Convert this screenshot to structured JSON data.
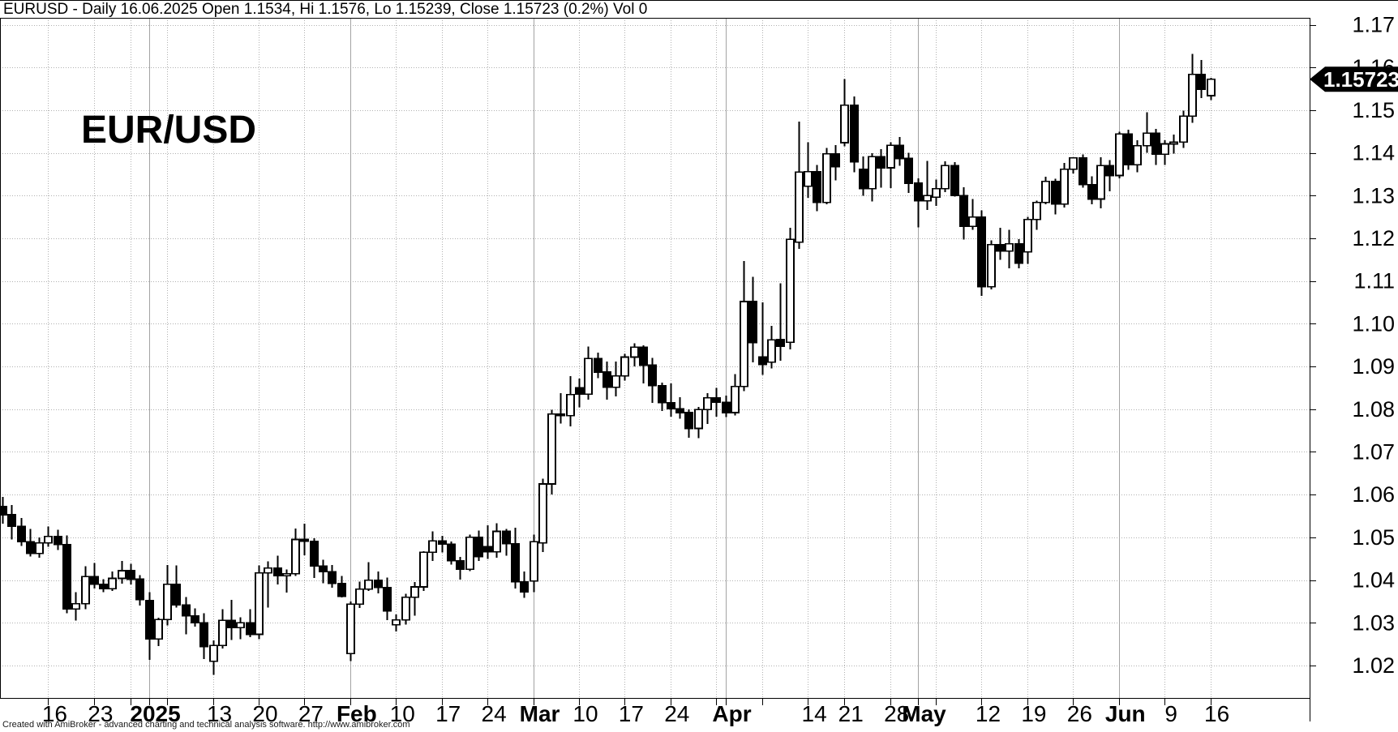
{
  "window": {
    "title": "EURUSD - Daily 16.06.2025 Open 1.1534, Hi 1.1576, Lo 1.15239, Close 1.15723 (0.2%) Vol 0"
  },
  "watermark": "EUR/USD",
  "price_axis": {
    "tick_labels": [
      "1.17",
      "1.16",
      "1.15",
      "1.14",
      "1.13",
      "1.12",
      "1.11",
      "1.10",
      "1.09",
      "1.08",
      "1.07",
      "1.06",
      "1.05",
      "1.04",
      "1.03",
      "1.02"
    ],
    "last_price_label": "1.15723"
  },
  "time_axis": {
    "labels": [
      {
        "index": 5,
        "text": "16",
        "bold": false
      },
      {
        "index": 10,
        "text": "23",
        "bold": false
      },
      {
        "index": 16,
        "text": "2025",
        "bold": true
      },
      {
        "index": 23,
        "text": "13",
        "bold": false
      },
      {
        "index": 28,
        "text": "20",
        "bold": false
      },
      {
        "index": 33,
        "text": "27",
        "bold": false
      },
      {
        "index": 38,
        "text": "Feb",
        "bold": true
      },
      {
        "index": 43,
        "text": "10",
        "bold": false
      },
      {
        "index": 48,
        "text": "17",
        "bold": false
      },
      {
        "index": 53,
        "text": "24",
        "bold": false
      },
      {
        "index": 58,
        "text": "Mar",
        "bold": true
      },
      {
        "index": 63,
        "text": "10",
        "bold": false
      },
      {
        "index": 68,
        "text": "17",
        "bold": false
      },
      {
        "index": 73,
        "text": "24",
        "bold": false
      },
      {
        "index": 79,
        "text": "Apr",
        "bold": true
      },
      {
        "index": 88,
        "text": "14",
        "bold": false
      },
      {
        "index": 92,
        "text": "21",
        "bold": false
      },
      {
        "index": 97,
        "text": "28",
        "bold": false
      },
      {
        "index": 100,
        "text": "May",
        "bold": true
      },
      {
        "index": 107,
        "text": "12",
        "bold": false
      },
      {
        "index": 112,
        "text": "19",
        "bold": false
      },
      {
        "index": 117,
        "text": "26",
        "bold": false
      },
      {
        "index": 122,
        "text": "Jun",
        "bold": true
      },
      {
        "index": 127,
        "text": "9",
        "bold": false
      },
      {
        "index": 132,
        "text": "16",
        "bold": false
      }
    ]
  },
  "footer": {
    "credit": "Created with AmiBroker - advanced charting and technical analysis software. http://www.amibroker.com"
  },
  "colors": {
    "background": "#ffffff",
    "candle_up_fill": "#ffffff",
    "candle_down_fill": "#000000",
    "candle_stroke": "#000000",
    "grid_dotted": "#b0b0b0",
    "grid_month_solid": "#a3a3a3",
    "axis": "#000000",
    "price_tag_bg": "#000000",
    "price_tag_text": "#ffffff"
  },
  "chart_data": {
    "type": "candlestick",
    "symbol": "EURUSD",
    "timeframe": "Daily",
    "title": "EURUSD - Daily 16.06.2025",
    "last_bar": {
      "date": "2025-06-16",
      "open": 1.1534,
      "high": 1.1576,
      "low": 1.15239,
      "close": 1.15723,
      "change_pct": "0.2%",
      "volume": 0
    },
    "ylim": [
      1.012,
      1.1716
    ],
    "y_ticks": [
      1.17,
      1.16,
      1.15,
      1.14,
      1.13,
      1.12,
      1.11,
      1.1,
      1.09,
      1.08,
      1.07,
      1.06,
      1.05,
      1.04,
      1.03,
      1.02
    ],
    "grid": true,
    "legend_position": "none",
    "blank_bars_right": 11,
    "monday_indices": [
      5,
      10,
      14,
      18,
      23,
      28,
      33,
      38,
      43,
      48,
      53,
      58,
      63,
      68,
      73,
      78,
      83,
      88,
      92,
      97,
      102,
      107,
      112,
      117,
      122,
      127,
      132
    ],
    "month_start_indices": [
      16,
      38,
      58,
      79,
      100,
      122
    ],
    "dates": [
      "2024-12-09",
      "2024-12-10",
      "2024-12-11",
      "2024-12-12",
      "2024-12-13",
      "2024-12-16",
      "2024-12-17",
      "2024-12-18",
      "2024-12-19",
      "2024-12-20",
      "2024-12-23",
      "2024-12-24",
      "2024-12-26",
      "2024-12-27",
      "2024-12-30",
      "2024-12-31",
      "2025-01-02",
      "2025-01-03",
      "2025-01-06",
      "2025-01-07",
      "2025-01-08",
      "2025-01-09",
      "2025-01-10",
      "2025-01-13",
      "2025-01-14",
      "2025-01-15",
      "2025-01-16",
      "2025-01-17",
      "2025-01-20",
      "2025-01-21",
      "2025-01-22",
      "2025-01-23",
      "2025-01-24",
      "2025-01-27",
      "2025-01-28",
      "2025-01-29",
      "2025-01-30",
      "2025-01-31",
      "2025-02-03",
      "2025-02-04",
      "2025-02-05",
      "2025-02-06",
      "2025-02-07",
      "2025-02-10",
      "2025-02-11",
      "2025-02-12",
      "2025-02-13",
      "2025-02-14",
      "2025-02-17",
      "2025-02-18",
      "2025-02-19",
      "2025-02-20",
      "2025-02-21",
      "2025-02-24",
      "2025-02-25",
      "2025-02-26",
      "2025-02-27",
      "2025-02-28",
      "2025-03-03",
      "2025-03-04",
      "2025-03-05",
      "2025-03-06",
      "2025-03-07",
      "2025-03-10",
      "2025-03-11",
      "2025-03-12",
      "2025-03-13",
      "2025-03-14",
      "2025-03-17",
      "2025-03-18",
      "2025-03-19",
      "2025-03-20",
      "2025-03-21",
      "2025-03-24",
      "2025-03-25",
      "2025-03-26",
      "2025-03-27",
      "2025-03-28",
      "2025-03-31",
      "2025-04-01",
      "2025-04-02",
      "2025-04-03",
      "2025-04-04",
      "2025-04-07",
      "2025-04-08",
      "2025-04-09",
      "2025-04-10",
      "2025-04-11",
      "2025-04-14",
      "2025-04-15",
      "2025-04-16",
      "2025-04-17",
      "2025-04-21",
      "2025-04-22",
      "2025-04-23",
      "2025-04-24",
      "2025-04-25",
      "2025-04-28",
      "2025-04-29",
      "2025-04-30",
      "2025-05-01",
      "2025-05-02",
      "2025-05-05",
      "2025-05-06",
      "2025-05-07",
      "2025-05-08",
      "2025-05-09",
      "2025-05-12",
      "2025-05-13",
      "2025-05-14",
      "2025-05-15",
      "2025-05-16",
      "2025-05-19",
      "2025-05-20",
      "2025-05-21",
      "2025-05-22",
      "2025-05-23",
      "2025-05-26",
      "2025-05-27",
      "2025-05-28",
      "2025-05-29",
      "2025-05-30",
      "2025-06-02",
      "2025-06-03",
      "2025-06-04",
      "2025-06-05",
      "2025-06-06",
      "2025-06-09",
      "2025-06-10",
      "2025-06-11",
      "2025-06-12",
      "2025-06-13",
      "2025-06-16"
    ],
    "ohlc": [
      [
        1.0572,
        1.0595,
        1.0532,
        1.0553
      ],
      [
        1.0553,
        1.0576,
        1.0495,
        1.0526
      ],
      [
        1.0526,
        1.0545,
        1.048,
        1.049
      ],
      [
        1.049,
        1.052,
        1.0455,
        1.0462
      ],
      [
        1.0462,
        1.05,
        1.0452,
        1.0487
      ],
      [
        1.0487,
        1.0525,
        1.0478,
        1.0502
      ],
      [
        1.0502,
        1.0518,
        1.047,
        1.0483
      ],
      [
        1.0483,
        1.0505,
        1.0322,
        1.0332
      ],
      [
        1.0332,
        1.0372,
        1.0305,
        1.0345
      ],
      [
        1.0345,
        1.0432,
        1.0332,
        1.0408
      ],
      [
        1.0408,
        1.044,
        1.038,
        1.039
      ],
      [
        1.039,
        1.0402,
        1.0372,
        1.038
      ],
      [
        1.038,
        1.042,
        1.0375,
        1.0404
      ],
      [
        1.0404,
        1.0445,
        1.0392,
        1.0422
      ],
      [
        1.0422,
        1.0438,
        1.039,
        1.0402
      ],
      [
        1.0402,
        1.0412,
        1.034,
        1.0354
      ],
      [
        1.0352,
        1.0372,
        1.0213,
        1.0262
      ],
      [
        1.0262,
        1.0312,
        1.0246,
        1.0308
      ],
      [
        1.0308,
        1.0435,
        1.0294,
        1.039
      ],
      [
        1.039,
        1.0434,
        1.0336,
        1.0342
      ],
      [
        1.0342,
        1.036,
        1.0273,
        1.0316
      ],
      [
        1.0316,
        1.0334,
        1.0291,
        1.03
      ],
      [
        1.03,
        1.0322,
        1.0215,
        1.0244
      ],
      [
        1.021,
        1.0259,
        1.0178,
        1.0247
      ],
      [
        1.0247,
        1.0332,
        1.024,
        1.0306
      ],
      [
        1.0306,
        1.0354,
        1.026,
        1.0289
      ],
      [
        1.0289,
        1.0313,
        1.0262,
        1.03
      ],
      [
        1.03,
        1.0332,
        1.0266,
        1.0273
      ],
      [
        1.0273,
        1.0434,
        1.0262,
        1.0417
      ],
      [
        1.0417,
        1.0444,
        1.0336,
        1.0428
      ],
      [
        1.0428,
        1.0457,
        1.039,
        1.041
      ],
      [
        1.041,
        1.0425,
        1.0371,
        1.0415
      ],
      [
        1.0415,
        1.0521,
        1.041,
        1.0495
      ],
      [
        1.0495,
        1.0532,
        1.0458,
        1.0491
      ],
      [
        1.0491,
        1.0498,
        1.0405,
        1.0433
      ],
      [
        1.0433,
        1.0448,
        1.0393,
        1.042
      ],
      [
        1.042,
        1.0435,
        1.0382,
        1.0392
      ],
      [
        1.0392,
        1.041,
        1.0359,
        1.0362
      ],
      [
        1.0228,
        1.035,
        1.021,
        1.0344
      ],
      [
        1.0344,
        1.0396,
        1.0335,
        1.0379
      ],
      [
        1.0379,
        1.0442,
        1.0375,
        1.04
      ],
      [
        1.04,
        1.042,
        1.0369,
        1.0383
      ],
      [
        1.0383,
        1.0406,
        1.0306,
        1.0328
      ],
      [
        1.0295,
        1.032,
        1.028,
        1.0307
      ],
      [
        1.0307,
        1.0368,
        1.0296,
        1.036
      ],
      [
        1.036,
        1.0395,
        1.0317,
        1.0384
      ],
      [
        1.0384,
        1.0468,
        1.0375,
        1.0465
      ],
      [
        1.0465,
        1.0514,
        1.0445,
        1.0492
      ],
      [
        1.0492,
        1.0504,
        1.0465,
        1.0484
      ],
      [
        1.0484,
        1.049,
        1.0436,
        1.0445
      ],
      [
        1.0445,
        1.0454,
        1.0401,
        1.0425
      ],
      [
        1.0425,
        1.0506,
        1.0421,
        1.05
      ],
      [
        1.05,
        1.0516,
        1.0445,
        1.0455
      ],
      [
        1.0478,
        1.0528,
        1.045,
        1.0466
      ],
      [
        1.0466,
        1.0533,
        1.0452,
        1.0514
      ],
      [
        1.0514,
        1.052,
        1.0457,
        1.0485
      ],
      [
        1.0485,
        1.0523,
        1.038,
        1.0396
      ],
      [
        1.0396,
        1.042,
        1.0358,
        1.0372
      ],
      [
        1.0398,
        1.0506,
        1.0372,
        1.049
      ],
      [
        1.0487,
        1.0637,
        1.0466,
        1.0625
      ],
      [
        1.0625,
        1.0799,
        1.06,
        1.0789
      ],
      [
        1.0789,
        1.0838,
        1.0766,
        1.0785
      ],
      [
        1.0785,
        1.0877,
        1.076,
        1.0834
      ],
      [
        1.085,
        1.0872,
        1.0804,
        1.0835
      ],
      [
        1.0835,
        1.0947,
        1.0822,
        1.0919
      ],
      [
        1.0919,
        1.0932,
        1.0873,
        1.0887
      ],
      [
        1.0887,
        1.0912,
        1.0822,
        1.0851
      ],
      [
        1.0851,
        1.0912,
        1.083,
        1.0878
      ],
      [
        1.0878,
        1.093,
        1.0867,
        1.0922
      ],
      [
        1.0922,
        1.0954,
        1.09,
        1.0945
      ],
      [
        1.0945,
        1.095,
        1.086,
        1.0903
      ],
      [
        1.0903,
        1.092,
        1.0815,
        1.0855
      ],
      [
        1.0855,
        1.0862,
        1.0796,
        1.0815
      ],
      [
        1.0815,
        1.086,
        1.0783,
        1.0801
      ],
      [
        1.0801,
        1.0828,
        1.0778,
        1.0792
      ],
      [
        1.0792,
        1.08,
        1.0733,
        1.0755
      ],
      [
        1.0755,
        1.0805,
        1.0732,
        1.0799
      ],
      [
        1.0799,
        1.0838,
        1.0765,
        1.0827
      ],
      [
        1.0827,
        1.085,
        1.0783,
        1.0816
      ],
      [
        1.0816,
        1.0832,
        1.0782,
        1.0792
      ],
      [
        1.0792,
        1.0882,
        1.0785,
        1.0853
      ],
      [
        1.0853,
        1.1147,
        1.0842,
        1.1052
      ],
      [
        1.1052,
        1.111,
        1.091,
        1.0956
      ],
      [
        1.0922,
        1.105,
        1.088,
        1.0905
      ],
      [
        1.091,
        1.0995,
        1.0895,
        1.0962
      ],
      [
        1.0963,
        1.1095,
        1.0913,
        1.0947
      ],
      [
        1.0957,
        1.1225,
        1.094,
        1.1198
      ],
      [
        1.1191,
        1.1473,
        1.1175,
        1.1355
      ],
      [
        1.1322,
        1.1425,
        1.1295,
        1.1356
      ],
      [
        1.1356,
        1.1372,
        1.1264,
        1.1284
      ],
      [
        1.1284,
        1.1412,
        1.128,
        1.1398
      ],
      [
        1.1398,
        1.1418,
        1.1336,
        1.1368
      ],
      [
        1.1424,
        1.1573,
        1.1415,
        1.1512
      ],
      [
        1.1512,
        1.1532,
        1.1355,
        1.1379
      ],
      [
        1.1362,
        1.1392,
        1.13,
        1.1316
      ],
      [
        1.1316,
        1.1399,
        1.1286,
        1.1391
      ],
      [
        1.1391,
        1.1409,
        1.1319,
        1.1365
      ],
      [
        1.1365,
        1.1425,
        1.1318,
        1.1418
      ],
      [
        1.1418,
        1.1437,
        1.137,
        1.1387
      ],
      [
        1.1387,
        1.14,
        1.1306,
        1.1329
      ],
      [
        1.1329,
        1.134,
        1.1226,
        1.1288
      ],
      [
        1.1288,
        1.1381,
        1.1266,
        1.13
      ],
      [
        1.1296,
        1.1338,
        1.1276,
        1.1316
      ],
      [
        1.1316,
        1.138,
        1.1308,
        1.137
      ],
      [
        1.137,
        1.1378,
        1.1298,
        1.13
      ],
      [
        1.13,
        1.132,
        1.1197,
        1.1228
      ],
      [
        1.1228,
        1.1292,
        1.122,
        1.125
      ],
      [
        1.125,
        1.1265,
        1.1065,
        1.1087
      ],
      [
        1.1087,
        1.1195,
        1.108,
        1.1185
      ],
      [
        1.1185,
        1.1225,
        1.115,
        1.117
      ],
      [
        1.117,
        1.122,
        1.113,
        1.1187
      ],
      [
        1.1187,
        1.1198,
        1.113,
        1.1142
      ],
      [
        1.1168,
        1.125,
        1.114,
        1.1244
      ],
      [
        1.1244,
        1.1288,
        1.122,
        1.1284
      ],
      [
        1.1284,
        1.1344,
        1.128,
        1.1333
      ],
      [
        1.1333,
        1.1339,
        1.1256,
        1.128
      ],
      [
        1.128,
        1.1376,
        1.1272,
        1.1362
      ],
      [
        1.1362,
        1.139,
        1.1352,
        1.1388
      ],
      [
        1.1388,
        1.1396,
        1.1319,
        1.1326
      ],
      [
        1.1326,
        1.1345,
        1.128,
        1.1292
      ],
      [
        1.1292,
        1.139,
        1.127,
        1.137
      ],
      [
        1.137,
        1.1383,
        1.131,
        1.1347
      ],
      [
        1.1347,
        1.145,
        1.134,
        1.1444
      ],
      [
        1.1444,
        1.1454,
        1.136,
        1.1372
      ],
      [
        1.1372,
        1.143,
        1.1355,
        1.1417
      ],
      [
        1.1417,
        1.1495,
        1.14,
        1.1446
      ],
      [
        1.1446,
        1.1456,
        1.1372,
        1.1397
      ],
      [
        1.1397,
        1.143,
        1.1372,
        1.1421
      ],
      [
        1.1421,
        1.1443,
        1.1398,
        1.1425
      ],
      [
        1.1425,
        1.1499,
        1.1412,
        1.1486
      ],
      [
        1.1486,
        1.1632,
        1.147,
        1.1584
      ],
      [
        1.1584,
        1.1617,
        1.1528,
        1.1549
      ],
      [
        1.1534,
        1.1576,
        1.15239,
        1.15723
      ]
    ]
  }
}
